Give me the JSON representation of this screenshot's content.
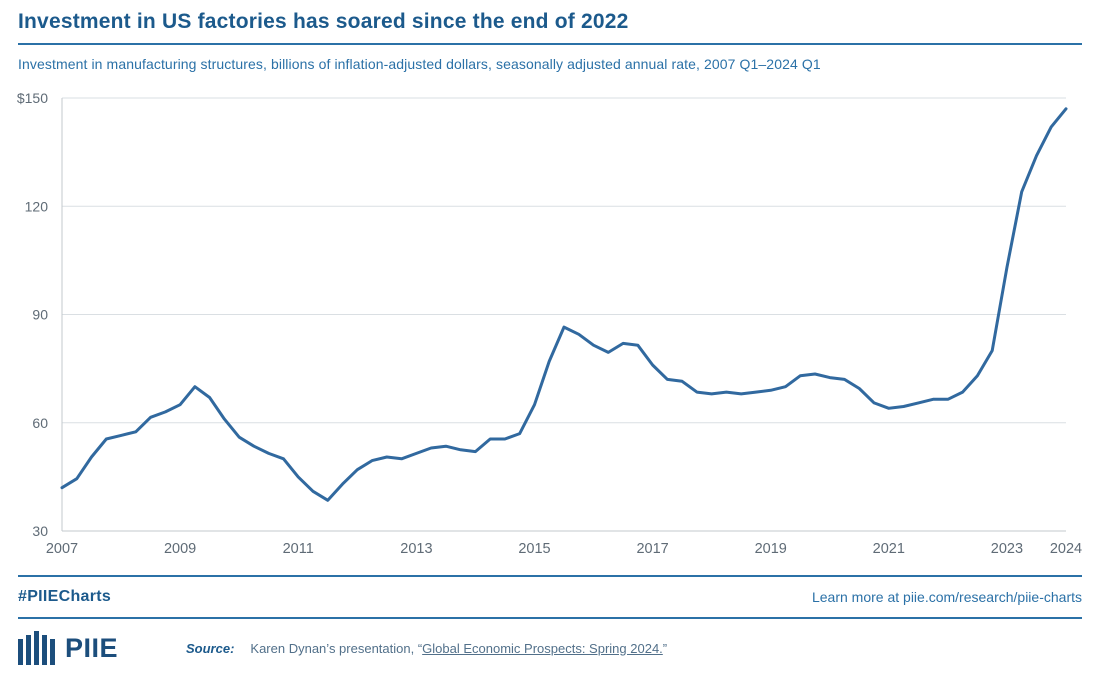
{
  "header": {
    "title": "Investment in US factories has soared since the end of 2022",
    "subtitle": "Investment in manufacturing structures, billions of inflation-adjusted dollars, seasonally adjusted annual rate, 2007 Q1–2024 Q1"
  },
  "chart_data": {
    "type": "line",
    "title": "Investment in manufacturing structures",
    "ylabel": "billions of inflation-adjusted dollars, seasonally adjusted annual rate",
    "xlabel": "",
    "frequency": "quarterly",
    "x_start": "2007 Q1",
    "x_end": "2024 Q1",
    "ylim": [
      30,
      150
    ],
    "grid": "horizontal",
    "legend": "none",
    "line_color": "#31699f",
    "yticks": [
      {
        "value": 30,
        "label": "30"
      },
      {
        "value": 60,
        "label": "60"
      },
      {
        "value": 90,
        "label": "90"
      },
      {
        "value": 120,
        "label": "120"
      },
      {
        "value": 150,
        "label": "$150"
      }
    ],
    "xticks": [
      {
        "index": 0,
        "label": "2007"
      },
      {
        "index": 8,
        "label": "2009"
      },
      {
        "index": 16,
        "label": "2011"
      },
      {
        "index": 24,
        "label": "2013"
      },
      {
        "index": 32,
        "label": "2015"
      },
      {
        "index": 40,
        "label": "2017"
      },
      {
        "index": 48,
        "label": "2019"
      },
      {
        "index": 56,
        "label": "2021"
      },
      {
        "index": 64,
        "label": "2023"
      },
      {
        "index": 68,
        "label": "2024"
      }
    ],
    "x": [
      "2007Q1",
      "2007Q2",
      "2007Q3",
      "2007Q4",
      "2008Q1",
      "2008Q2",
      "2008Q3",
      "2008Q4",
      "2009Q1",
      "2009Q2",
      "2009Q3",
      "2009Q4",
      "2010Q1",
      "2010Q2",
      "2010Q3",
      "2010Q4",
      "2011Q1",
      "2011Q2",
      "2011Q3",
      "2011Q4",
      "2012Q1",
      "2012Q2",
      "2012Q3",
      "2012Q4",
      "2013Q1",
      "2013Q2",
      "2013Q3",
      "2013Q4",
      "2014Q1",
      "2014Q2",
      "2014Q3",
      "2014Q4",
      "2015Q1",
      "2015Q2",
      "2015Q3",
      "2015Q4",
      "2016Q1",
      "2016Q2",
      "2016Q3",
      "2016Q4",
      "2017Q1",
      "2017Q2",
      "2017Q3",
      "2017Q4",
      "2018Q1",
      "2018Q2",
      "2018Q3",
      "2018Q4",
      "2019Q1",
      "2019Q2",
      "2019Q3",
      "2019Q4",
      "2020Q1",
      "2020Q2",
      "2020Q3",
      "2020Q4",
      "2021Q1",
      "2021Q2",
      "2021Q3",
      "2021Q4",
      "2022Q1",
      "2022Q2",
      "2022Q3",
      "2022Q4",
      "2023Q1",
      "2023Q2",
      "2023Q3",
      "2023Q4",
      "2024Q1"
    ],
    "values": [
      42,
      44.5,
      50.5,
      55.5,
      56.5,
      57.5,
      61.5,
      63,
      65,
      70,
      67,
      61,
      56,
      53.5,
      51.5,
      50,
      45,
      41,
      38.5,
      43,
      47,
      49.5,
      50.5,
      50,
      51.5,
      53,
      53.5,
      52.5,
      52,
      55.5,
      55.5,
      57,
      65,
      77,
      86.5,
      84.5,
      81.5,
      79.5,
      82,
      81.5,
      76,
      72,
      71.5,
      68.5,
      68,
      68.5,
      68,
      68.5,
      69,
      70,
      73,
      73.5,
      72.5,
      72,
      69.5,
      65.5,
      64,
      64.5,
      65.5,
      66.5,
      66.5,
      68.5,
      73,
      80,
      103,
      124,
      134,
      142,
      147
    ]
  },
  "footer": {
    "hashtag": "#PIIECharts",
    "learn_more": "Learn more at piie.com/research/piie-charts"
  },
  "source": {
    "label": "Source:",
    "prefix": "Karen Dynan’s presentation, “",
    "link_text": "Global Economic Prospects: Spring 2024.",
    "suffix": "”"
  },
  "logo": {
    "text": "PIIE"
  },
  "colors": {
    "title_blue": "#1c5a8c",
    "accent_blue": "#2b71a7",
    "line_blue": "#31699f",
    "axis_text": "#5f6b76",
    "gridline": "#dadfe3",
    "logo_navy": "#1c4e7c",
    "source_text": "#52708a"
  }
}
